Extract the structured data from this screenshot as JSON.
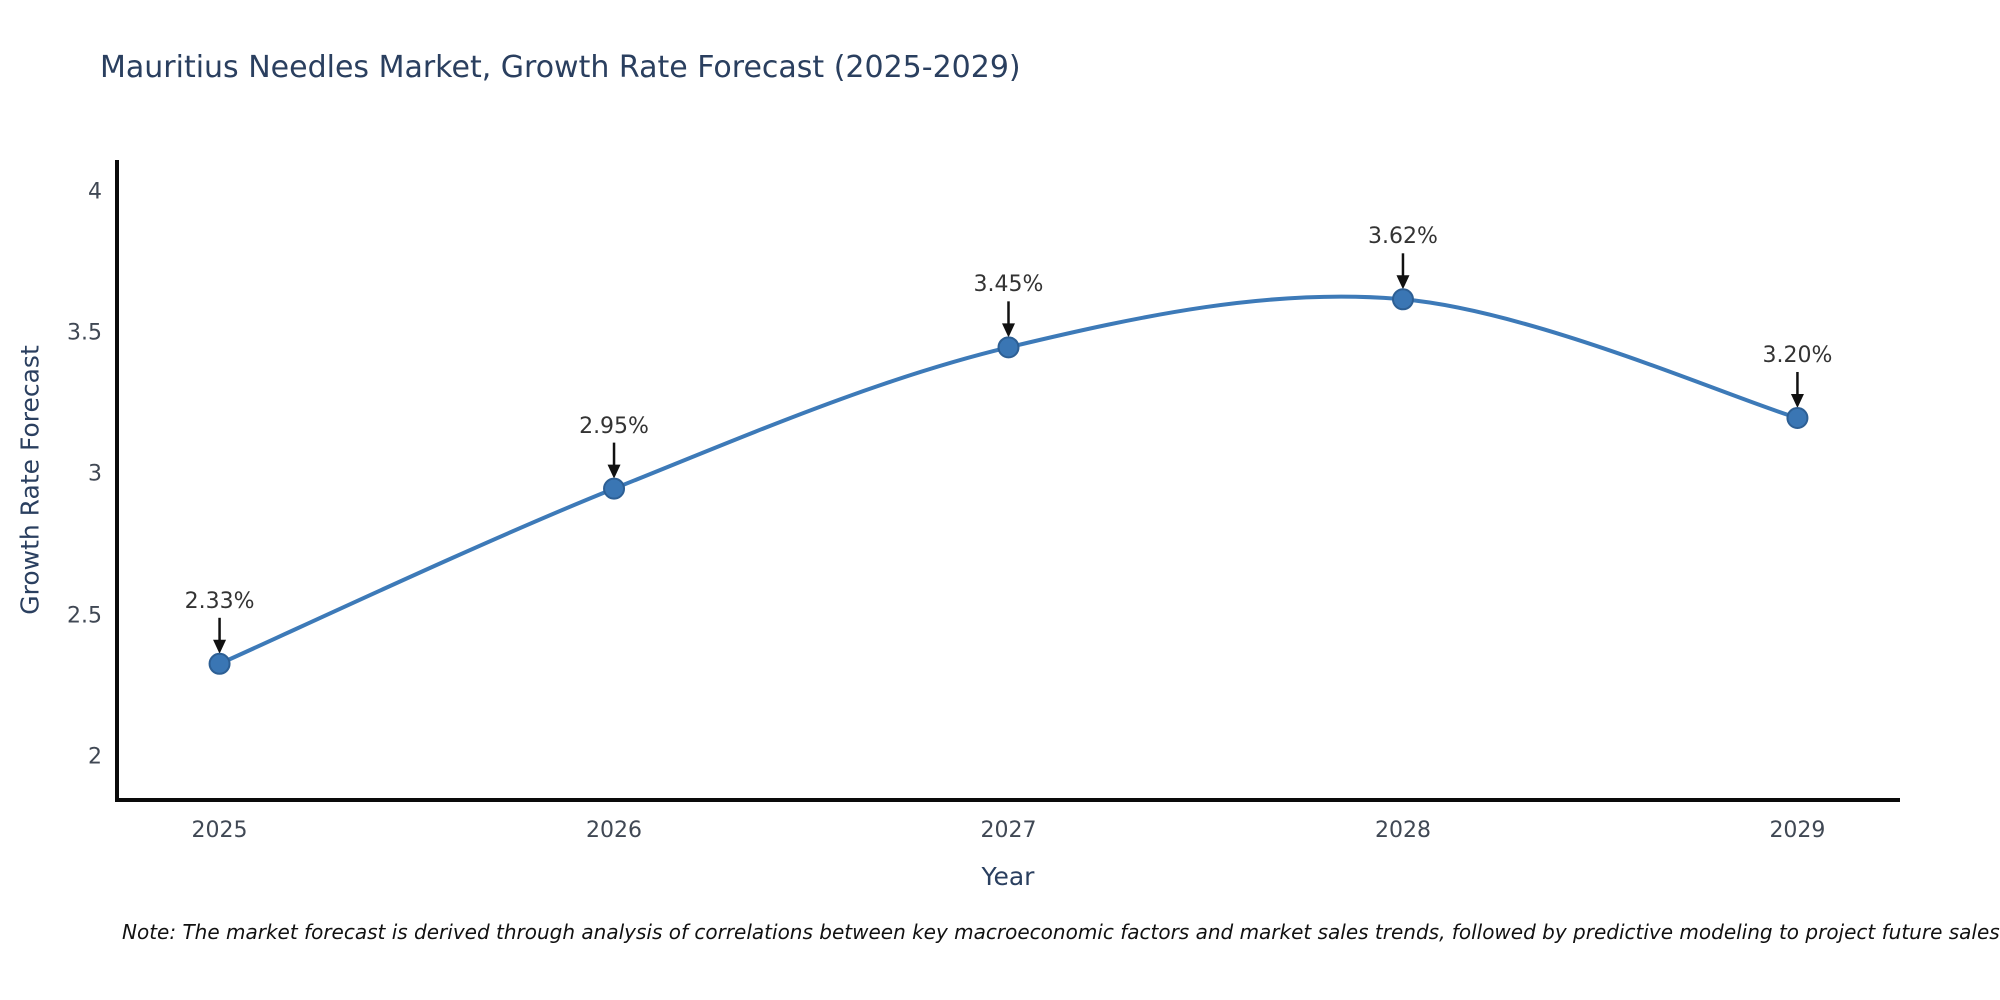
{
  "title": "Mauritius Needles Market, Growth Rate Forecast (2025-2029)",
  "note": "Note: The market forecast is derived through analysis of correlations between key macroeconomic factors and market sales trends, followed by predictive modeling to project future sales",
  "chart_data": {
    "type": "line",
    "title": "Mauritius Needles Market, Growth Rate Forecast (2025-2029)",
    "xlabel": "Year",
    "ylabel": "Growth Rate Forecast",
    "x": [
      2025,
      2026,
      2027,
      2028,
      2029
    ],
    "values": [
      2.33,
      2.95,
      3.45,
      3.62,
      3.2
    ],
    "point_labels": [
      "2.33%",
      "2.95%",
      "3.45%",
      "3.62%",
      "3.20%"
    ],
    "yticks": [
      2,
      2.5,
      3,
      3.5,
      4
    ],
    "ytick_labels": [
      "2",
      "2.5",
      "3",
      "3.5",
      "4"
    ],
    "xtick_labels": [
      "2025",
      "2026",
      "2027",
      "2028",
      "2029"
    ],
    "ylim": [
      1.848,
      4.113
    ],
    "xlim": [
      2024.74,
      2029.26
    ],
    "grid": false,
    "legend": "none",
    "line_smoothing": "spline",
    "colors": {
      "line": "#3d7ab8",
      "marker_fill": "#3a76b4",
      "marker_edge": "#2d5f94",
      "axis": "#0a0a0a",
      "annotation_arrow": "#111111",
      "title_text": "#2a3f5f",
      "tick_text": "#404854",
      "background": "#ffffff"
    }
  }
}
